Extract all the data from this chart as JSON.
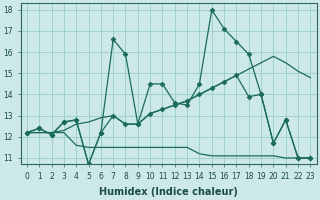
{
  "xlabel": "Humidex (Indice chaleur)",
  "bg_color": "#cce8e8",
  "grid_color": "#99cccc",
  "line_color": "#1a6b5a",
  "xlim": [
    -0.5,
    23.5
  ],
  "ylim": [
    10.7,
    18.3
  ],
  "xticks": [
    0,
    1,
    2,
    3,
    4,
    5,
    6,
    7,
    8,
    9,
    10,
    11,
    12,
    13,
    14,
    15,
    16,
    17,
    18,
    19,
    20,
    21,
    22,
    23
  ],
  "yticks": [
    11,
    12,
    13,
    14,
    15,
    16,
    17,
    18
  ],
  "series0_x": [
    0,
    1,
    2,
    3,
    4,
    5,
    6,
    7,
    8,
    9,
    10,
    11,
    12,
    13,
    14,
    15,
    16,
    17,
    18,
    19,
    20,
    21,
    22,
    23
  ],
  "series0_y": [
    12.2,
    12.4,
    12.1,
    12.7,
    12.8,
    10.7,
    12.2,
    16.6,
    15.9,
    12.6,
    14.5,
    14.5,
    13.6,
    13.5,
    14.5,
    18.0,
    17.1,
    16.5,
    15.9,
    14.0,
    11.7,
    12.8,
    11.0,
    11.0
  ],
  "series1_x": [
    0,
    1,
    2,
    3,
    4,
    5,
    6,
    7,
    8,
    9,
    10,
    11,
    12,
    13,
    14,
    15,
    16,
    17,
    18,
    19,
    20,
    21,
    22,
    23
  ],
  "series1_y": [
    12.2,
    12.2,
    12.2,
    12.3,
    12.6,
    12.7,
    12.9,
    13.0,
    12.6,
    12.6,
    13.1,
    13.3,
    13.5,
    13.7,
    14.0,
    14.3,
    14.6,
    14.9,
    15.2,
    15.5,
    15.8,
    15.5,
    15.1,
    14.8
  ],
  "series2_x": [
    0,
    1,
    2,
    3,
    4,
    5,
    6,
    7,
    8,
    9,
    10,
    11,
    12,
    13,
    14,
    15,
    16,
    17,
    18,
    19,
    20,
    21,
    22,
    23
  ],
  "series2_y": [
    12.2,
    12.2,
    12.2,
    12.2,
    11.6,
    11.5,
    11.5,
    11.5,
    11.5,
    11.5,
    11.5,
    11.5,
    11.5,
    11.5,
    11.2,
    11.1,
    11.1,
    11.1,
    11.1,
    11.1,
    11.1,
    11.0,
    11.0,
    11.0
  ],
  "series3_x": [
    0,
    1,
    2,
    3,
    4,
    5,
    6,
    7,
    8,
    9,
    10,
    11,
    12,
    13,
    14,
    15,
    16,
    17,
    18,
    19,
    20,
    21,
    22,
    23
  ],
  "series3_y": [
    12.2,
    12.4,
    12.1,
    12.7,
    12.8,
    10.7,
    12.2,
    13.0,
    12.6,
    12.6,
    13.1,
    13.3,
    13.5,
    13.7,
    14.0,
    14.3,
    14.6,
    14.9,
    13.9,
    14.0,
    11.7,
    12.8,
    11.0,
    11.0
  ],
  "marker": "D",
  "markersize": 2.5,
  "linewidth": 0.9,
  "tick_fontsize": 5.5,
  "xlabel_fontsize": 7
}
